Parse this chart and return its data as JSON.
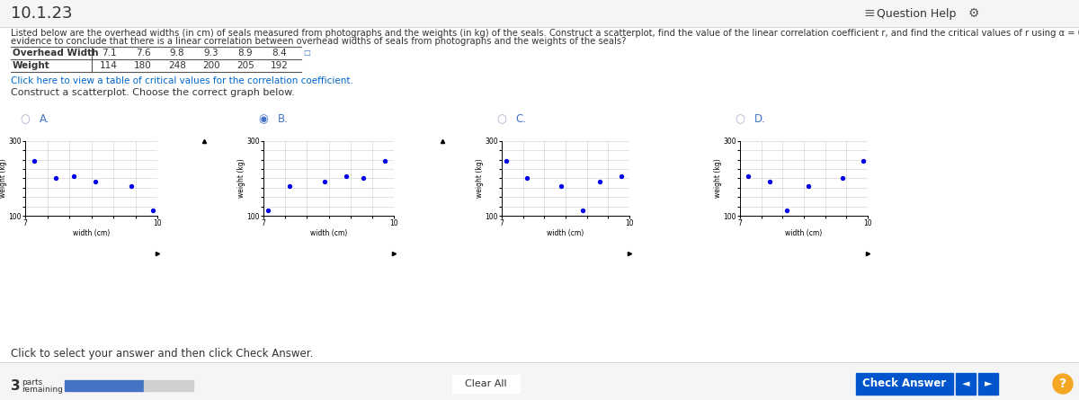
{
  "title": "10.1.23",
  "overhead_widths": [
    7.1,
    7.6,
    9.8,
    9.3,
    8.9,
    8.4
  ],
  "weights": [
    114,
    180,
    248,
    200,
    205,
    192
  ],
  "graph_labels": [
    "A.",
    "B.",
    "C.",
    "D."
  ],
  "selected_idx": 1,
  "xlabel": "width (cm)",
  "ylabel": "weight (kg)",
  "dot_color": "#0000ee",
  "bg_color": "#ffffff",
  "grid_color": "#cccccc",
  "radio_color": "#4472c4",
  "title_bar_color": "#f5f5f5",
  "bottom_bar_color": "#f5f5f5",
  "link_color": "#0066cc",
  "text_color": "#333333",
  "check_btn_color": "#0055cc",
  "question_help_text": "Question Help",
  "link_text": "Click here to view a table of critical values for the correlation coefficient.",
  "construct_text": "Construct a scatterplot. Choose the correct graph below.",
  "bottom_text": "Click to select your answer and then click Check Answer.",
  "clear_all_text": "Clear All",
  "check_answer_text": "Check Answer",
  "parts_text": "parts\nremaining",
  "parts_num": "3"
}
